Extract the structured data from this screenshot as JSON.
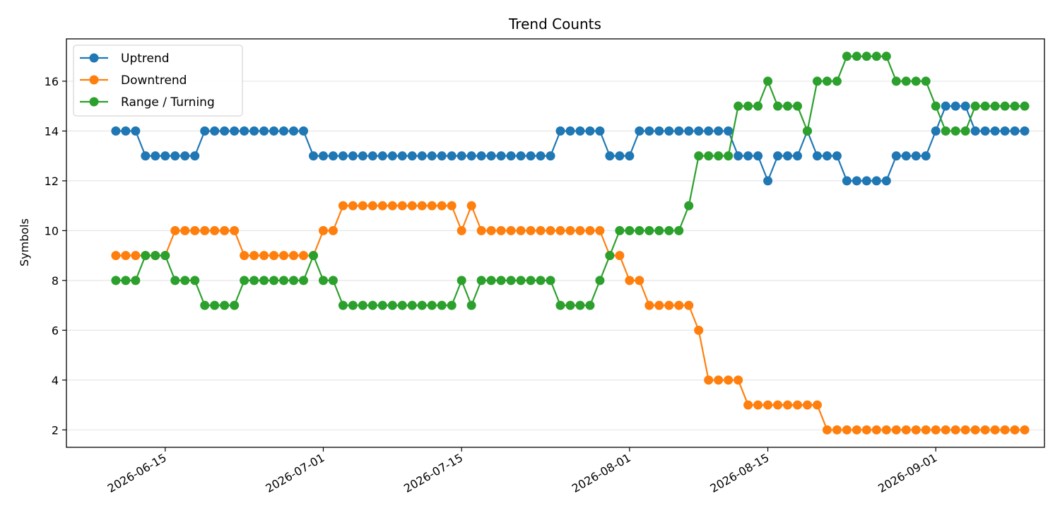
{
  "chart_data": {
    "type": "line",
    "title": "Trend Counts",
    "xlabel": "",
    "ylabel": "Symbols",
    "x_start": "2026-06-10",
    "x_ticks": [
      "2026-06-15",
      "2026-07-01",
      "2026-07-15",
      "2026-08-01",
      "2026-08-15",
      "2026-09-01"
    ],
    "x_range": [
      "2026-06-05",
      "2026-09-12"
    ],
    "y_ticks": [
      2,
      4,
      6,
      8,
      10,
      12,
      14,
      16
    ],
    "ylim": [
      1.3,
      17.7
    ],
    "grid": "y",
    "legend_position": "top-left",
    "series": [
      {
        "name": "Uptrend",
        "color": "#1f77b4",
        "values": [
          14,
          14,
          14,
          13,
          13,
          13,
          13,
          13,
          13,
          14,
          14,
          14,
          14,
          14,
          14,
          14,
          14,
          14,
          14,
          14,
          13,
          13,
          13,
          13,
          13,
          13,
          13,
          13,
          13,
          13,
          13,
          13,
          13,
          13,
          13,
          13,
          13,
          13,
          13,
          13,
          13,
          13,
          13,
          13,
          13,
          14,
          14,
          14,
          14,
          14,
          13,
          13,
          13,
          14,
          14,
          14,
          14,
          14,
          14,
          14,
          14,
          14,
          14,
          13,
          13,
          13,
          12,
          13,
          13,
          13,
          14,
          13,
          13,
          13,
          12,
          12,
          12,
          12,
          12,
          13,
          13,
          13,
          13,
          14,
          15,
          15,
          15,
          14,
          14,
          14,
          14,
          14,
          14
        ]
      },
      {
        "name": "Downtrend",
        "color": "#ff7f0e",
        "values": [
          9,
          9,
          9,
          9,
          9,
          9,
          10,
          10,
          10,
          10,
          10,
          10,
          10,
          9,
          9,
          9,
          9,
          9,
          9,
          9,
          9,
          10,
          10,
          11,
          11,
          11,
          11,
          11,
          11,
          11,
          11,
          11,
          11,
          11,
          11,
          10,
          11,
          10,
          10,
          10,
          10,
          10,
          10,
          10,
          10,
          10,
          10,
          10,
          10,
          10,
          9,
          9,
          8,
          8,
          7,
          7,
          7,
          7,
          7,
          6,
          4,
          4,
          4,
          4,
          3,
          3,
          3,
          3,
          3,
          3,
          3,
          3,
          2,
          2,
          2,
          2,
          2,
          2,
          2,
          2,
          2,
          2,
          2,
          2,
          2,
          2,
          2,
          2,
          2,
          2,
          2,
          2,
          2
        ]
      },
      {
        "name": "Range / Turning",
        "color": "#2ca02c",
        "values": [
          8,
          8,
          8,
          9,
          9,
          9,
          8,
          8,
          8,
          7,
          7,
          7,
          7,
          8,
          8,
          8,
          8,
          8,
          8,
          8,
          9,
          8,
          8,
          7,
          7,
          7,
          7,
          7,
          7,
          7,
          7,
          7,
          7,
          7,
          7,
          8,
          7,
          8,
          8,
          8,
          8,
          8,
          8,
          8,
          8,
          7,
          7,
          7,
          7,
          8,
          9,
          10,
          10,
          10,
          10,
          10,
          10,
          10,
          11,
          13,
          13,
          13,
          13,
          15,
          15,
          15,
          16,
          15,
          15,
          15,
          14,
          16,
          16,
          16,
          17,
          17,
          17,
          17,
          17,
          16,
          16,
          16,
          16,
          15,
          14,
          14,
          14,
          15,
          15,
          15,
          15,
          15,
          15
        ]
      }
    ]
  }
}
